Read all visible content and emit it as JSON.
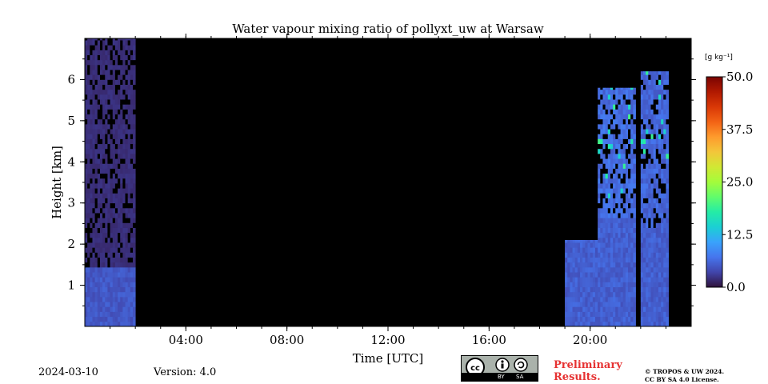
{
  "chart_data": {
    "type": "heatmap",
    "title": "Water vapour mixing ratio of pollyxt_uw at Warsaw",
    "xlabel": "Time [UTC]",
    "ylabel": "Height [km]",
    "xlim": [
      0,
      24
    ],
    "ylim": [
      0,
      7
    ],
    "x_ticks": [
      {
        "value": 4,
        "label": "04:00"
      },
      {
        "value": 8,
        "label": "08:00"
      },
      {
        "value": 12,
        "label": "12:00"
      },
      {
        "value": 16,
        "label": "16:00"
      },
      {
        "value": 20,
        "label": "20:00"
      }
    ],
    "x_minor_step": 1,
    "y_ticks": [
      {
        "value": 1,
        "label": "1"
      },
      {
        "value": 2,
        "label": "2"
      },
      {
        "value": 3,
        "label": "3"
      },
      {
        "value": 4,
        "label": "4"
      },
      {
        "value": 5,
        "label": "5"
      },
      {
        "value": 6,
        "label": "6"
      }
    ],
    "y_minor_step": 0.5,
    "colorbar": {
      "unit_label": "[g kg⁻¹]",
      "range": [
        0,
        50
      ],
      "ticks": [
        {
          "value": 0,
          "label": "0.0"
        },
        {
          "value": 12.5,
          "label": "12.5"
        },
        {
          "value": 25,
          "label": "25.0"
        },
        {
          "value": 37.5,
          "label": "37.5"
        },
        {
          "value": 50,
          "label": "50.0"
        }
      ],
      "colors": [
        "#30123b",
        "#4145ab",
        "#4675ed",
        "#39a2fc",
        "#1bcfd4",
        "#24eca6",
        "#61fc6c",
        "#a4fc3b",
        "#d1e834",
        "#f3c63a",
        "#fe9b2d",
        "#f36315",
        "#d93806",
        "#b11901",
        "#7a0403"
      ]
    },
    "segments": [
      {
        "start": 0.0,
        "end": 2.0,
        "kind": "profile",
        "top": 7.0,
        "boundary_layer_top": 1.4,
        "bl_value": 5.0,
        "upper_value": 2.0
      },
      {
        "start": 19.0,
        "end": 20.3,
        "kind": "profile",
        "top": 2.1,
        "boundary_layer_top": 2.1,
        "bl_value": 5.5,
        "upper_value": 5.5
      },
      {
        "start": 20.3,
        "end": 21.8,
        "kind": "profile",
        "top": 5.8,
        "boundary_layer_top": 2.6,
        "bl_value": 5.5,
        "upper_value": 6.5
      },
      {
        "start": 22.0,
        "end": 23.1,
        "kind": "profile",
        "top": 6.2,
        "boundary_layer_top": 2.4,
        "bl_value": 5.5,
        "upper_value": 6.0
      }
    ],
    "no_data_color": "#000000"
  },
  "footer": {
    "date": "2024-03-10",
    "version": "Version: 4.0",
    "preliminary_line1": "Preliminary",
    "preliminary_line2": "Results.",
    "copyright_line1": "© TROPOS & UW 2024.",
    "copyright_line2": "CC BY SA 4.0 License.",
    "cc_badge": {
      "label_by": "BY",
      "label_sa": "SA",
      "icon": "cc-by-sa-license-icon"
    }
  }
}
